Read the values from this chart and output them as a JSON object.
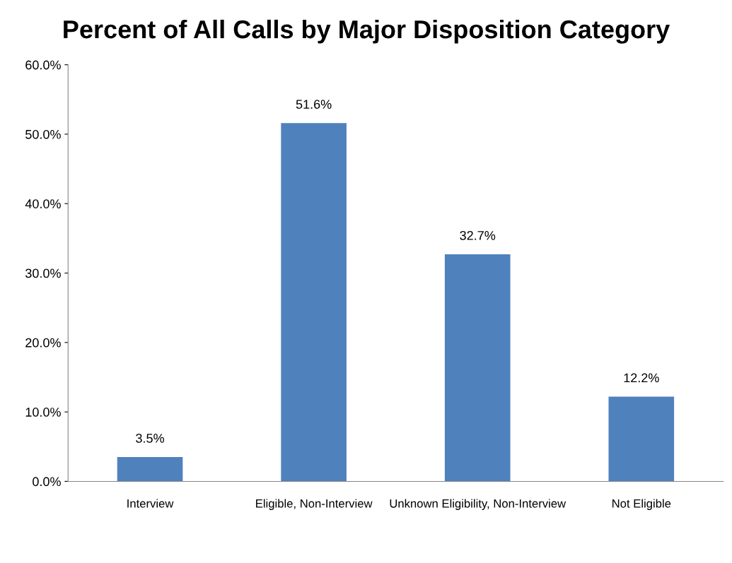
{
  "chart_data": {
    "type": "bar",
    "title": "Percent of All Calls by Major Disposition Category",
    "categories": [
      "Interview",
      "Eligible, Non-Interview",
      "Unknown Eligibility, Non-Interview",
      "Not Eligible"
    ],
    "values": [
      3.5,
      51.6,
      32.7,
      12.2
    ],
    "value_labels": [
      "3.5%",
      "51.6%",
      "32.7%",
      "12.2%"
    ],
    "color": "#4f81bd",
    "ylim": [
      0,
      60
    ],
    "yticks": [
      {
        "value": 0,
        "label": "0.0%"
      },
      {
        "value": 10,
        "label": "10.0%"
      },
      {
        "value": 20,
        "label": "20.0%"
      },
      {
        "value": 30,
        "label": "30.0%"
      },
      {
        "value": 40,
        "label": "40.0%"
      },
      {
        "value": 50,
        "label": "50.0%"
      },
      {
        "value": 60,
        "label": "60.0%"
      }
    ],
    "grid": false,
    "legend": false
  }
}
